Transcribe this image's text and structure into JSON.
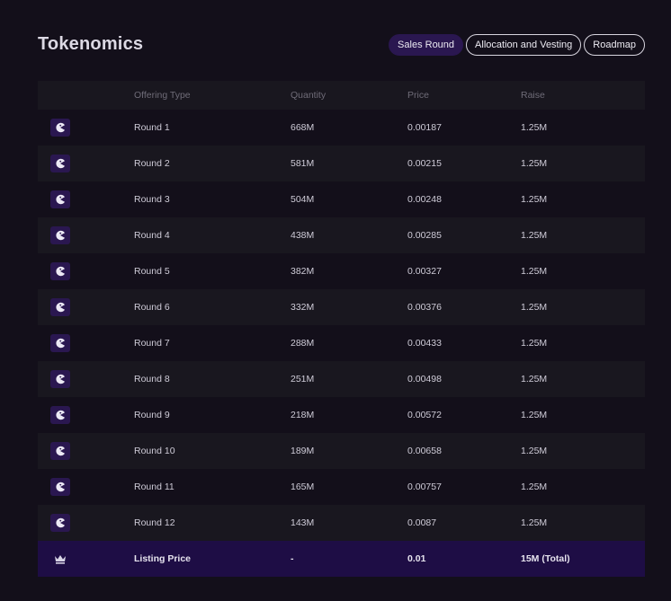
{
  "page": {
    "title": "Tokenomics"
  },
  "tabs": [
    {
      "label": "Sales Round",
      "active": true
    },
    {
      "label": "Allocation and Vesting",
      "active": false
    },
    {
      "label": "Roadmap",
      "active": false
    }
  ],
  "table": {
    "headers": {
      "type": "Offering Type",
      "quantity": "Quantity",
      "price": "Price",
      "raise": "Raise"
    },
    "rows": [
      {
        "type": "Round 1",
        "quantity": "668M",
        "price": "0.00187",
        "raise": "1.25M",
        "icon": "pie-chart-icon"
      },
      {
        "type": "Round 2",
        "quantity": "581M",
        "price": "0.00215",
        "raise": "1.25M",
        "icon": "pie-chart-icon"
      },
      {
        "type": "Round 3",
        "quantity": "504M",
        "price": "0.00248",
        "raise": "1.25M",
        "icon": "pie-chart-icon"
      },
      {
        "type": "Round 4",
        "quantity": "438M",
        "price": "0.00285",
        "raise": "1.25M",
        "icon": "pie-chart-icon"
      },
      {
        "type": "Round 5",
        "quantity": "382M",
        "price": "0.00327",
        "raise": "1.25M",
        "icon": "pie-chart-icon"
      },
      {
        "type": "Round 6",
        "quantity": "332M",
        "price": "0.00376",
        "raise": "1.25M",
        "icon": "pie-chart-icon"
      },
      {
        "type": "Round 7",
        "quantity": "288M",
        "price": "0.00433",
        "raise": "1.25M",
        "icon": "pie-chart-icon"
      },
      {
        "type": "Round 8",
        "quantity": "251M",
        "price": "0.00498",
        "raise": "1.25M",
        "icon": "pie-chart-icon"
      },
      {
        "type": "Round 9",
        "quantity": "218M",
        "price": "0.00572",
        "raise": "1.25M",
        "icon": "pie-chart-icon"
      },
      {
        "type": "Round 10",
        "quantity": "189M",
        "price": "0.00658",
        "raise": "1.25M",
        "icon": "pie-chart-icon"
      },
      {
        "type": "Round 11",
        "quantity": "165M",
        "price": "0.00757",
        "raise": "1.25M",
        "icon": "pie-chart-icon"
      },
      {
        "type": "Round 12",
        "quantity": "143M",
        "price": "0.0087",
        "raise": "1.25M",
        "icon": "pie-chart-icon"
      }
    ],
    "total": {
      "type": "Listing Price",
      "quantity": "-",
      "price": "0.01",
      "raise": "15M (Total)",
      "icon": "crown-icon"
    }
  },
  "colors": {
    "background": "#130f1a",
    "row_alt": "#19171f",
    "accent": "#2a1750",
    "total_row": "#1e0d45"
  }
}
